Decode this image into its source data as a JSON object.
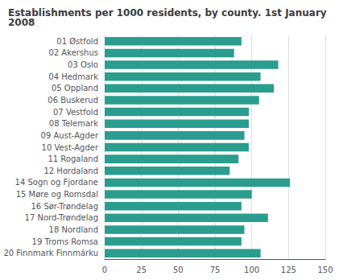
{
  "chart_data": {
    "type": "bar",
    "orientation": "horizontal",
    "title": "Establishments per 1000 residents, by county. 1st January 2008",
    "categories": [
      "01 Østfold",
      "02 Akershus",
      "03 Oslo",
      "04 Hedmark",
      "05 Oppland",
      "06 Buskerud",
      "07 Vestfold",
      "08 Telemark",
      "09 Aust-Agder",
      "10 Vest-Agder",
      "11 Rogaland",
      "12 Hordaland",
      "14 Sogn og Fjordane",
      "15 Møre og Romsdal",
      "16 Sør-Trøndelag",
      "17 Nord-Trøndelag",
      "18 Nordland",
      "19 Troms Romsa",
      "20 Finnmark Finnmárku"
    ],
    "values": [
      93,
      88,
      118,
      106,
      115,
      105,
      98,
      98,
      95,
      98,
      91,
      85,
      126,
      100,
      93,
      111,
      95,
      93,
      106
    ],
    "color": "#2a9d8f",
    "xlim": [
      0,
      150
    ],
    "xticks": [
      0,
      25,
      50,
      75,
      100,
      125,
      150
    ],
    "grid": true
  }
}
